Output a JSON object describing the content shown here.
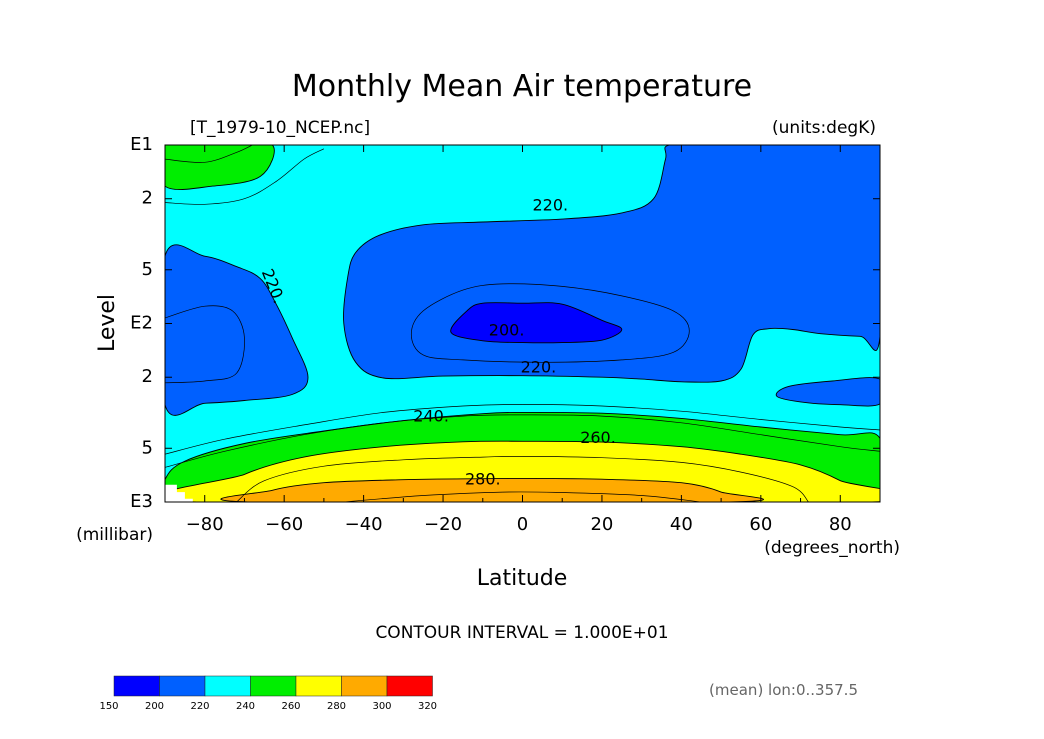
{
  "chart_data": {
    "type": "heatmap",
    "title": "Monthly Mean Air temperature",
    "subtitle_left": "[T_1979-10_NCEP.nc]",
    "subtitle_right": "(units:degK)",
    "xlabel": "Latitude",
    "xunits": "(degrees_north)",
    "ylabel": "Level",
    "yunits": "(millibar)",
    "xlim": [
      -90,
      90
    ],
    "ylim_mb": [
      1000,
      10
    ],
    "y_scale": "log",
    "x_ticks": [
      {
        "v": -80,
        "label": "−80"
      },
      {
        "v": -60,
        "label": "−60"
      },
      {
        "v": -40,
        "label": "−40"
      },
      {
        "v": -20,
        "label": "−20"
      },
      {
        "v": 0,
        "label": "0"
      },
      {
        "v": 20,
        "label": "20"
      },
      {
        "v": 40,
        "label": "40"
      },
      {
        "v": 60,
        "label": "60"
      },
      {
        "v": 80,
        "label": "80"
      }
    ],
    "y_ticks": [
      {
        "mb": 10,
        "label": "E1"
      },
      {
        "mb": 20,
        "label": "2"
      },
      {
        "mb": 50,
        "label": "5"
      },
      {
        "mb": 100,
        "label": "E2"
      },
      {
        "mb": 200,
        "label": "2"
      },
      {
        "mb": 500,
        "label": "5"
      },
      {
        "mb": 1000,
        "label": "E3"
      }
    ],
    "contour_interval_text": "CONTOUR INTERVAL = 1.000E+01",
    "note": "(mean) lon:0..357.5",
    "contour_labels": [
      {
        "text": "220.",
        "lat": 7,
        "mb": 22,
        "rot": 0
      },
      {
        "text": "220.",
        "lat": -63,
        "mb": 62,
        "rot": 68
      },
      {
        "text": "200.",
        "lat": -4,
        "mb": 110,
        "rot": 0
      },
      {
        "text": "220.",
        "lat": 4,
        "mb": 178,
        "rot": 0
      },
      {
        "text": "240.",
        "lat": -23,
        "mb": 335,
        "rot": 0
      },
      {
        "text": "260.",
        "lat": 19,
        "mb": 440,
        "rot": 0
      },
      {
        "text": "280.",
        "lat": -10,
        "mb": 755,
        "rot": 0
      }
    ],
    "colorbar": {
      "levels": [
        150,
        200,
        220,
        240,
        260,
        280,
        300,
        320
      ],
      "colors": [
        "#0000ff",
        "#0060ff",
        "#00ffff",
        "#00ee00",
        "#ffff00",
        "#ffaa00",
        "#ff0000"
      ]
    },
    "regions": [
      {
        "level": "220-240",
        "color": "#00ffff",
        "points": [
          [
            -90,
            10
          ],
          [
            90,
            10
          ],
          [
            90,
            1000
          ],
          [
            -90,
            1000
          ]
        ]
      },
      {
        "level": "200-220",
        "color": "#0060ff",
        "points": [
          [
            37,
            10
          ],
          [
            50,
            10
          ],
          [
            60,
            10
          ],
          [
            70,
            10
          ],
          [
            80,
            10
          ],
          [
            90,
            10
          ],
          [
            90,
            118
          ],
          [
            85,
            118
          ],
          [
            75,
            114
          ],
          [
            68,
            108
          ],
          [
            62,
            107
          ],
          [
            58,
            116
          ],
          [
            55,
            180
          ],
          [
            50,
            210
          ],
          [
            40,
            212
          ],
          [
            30,
            205
          ],
          [
            20,
            200
          ],
          [
            0,
            196
          ],
          [
            -20,
            197
          ],
          [
            -35,
            202
          ],
          [
            -42,
            165
          ],
          [
            -45,
            100
          ],
          [
            -44,
            55
          ],
          [
            -42,
            40
          ],
          [
            -36,
            32
          ],
          [
            -25,
            28
          ],
          [
            -10,
            27
          ],
          [
            10,
            26
          ],
          [
            25,
            24
          ],
          [
            33,
            20
          ],
          [
            36,
            12
          ]
        ]
      },
      {
        "level": "200-220",
        "color": "#0060ff",
        "points": [
          [
            -90,
            42
          ],
          [
            -80,
            42
          ],
          [
            -72,
            48
          ],
          [
            -66,
            56
          ],
          [
            -62,
            78
          ],
          [
            -58,
            120
          ],
          [
            -54,
            200
          ],
          [
            -58,
            250
          ],
          [
            -70,
            270
          ],
          [
            -80,
            280
          ],
          [
            -90,
            285
          ]
        ]
      },
      {
        "level": "200-220",
        "color": "#0060ff",
        "points": [
          [
            90,
            205
          ],
          [
            78,
            210
          ],
          [
            67,
            225
          ],
          [
            64,
            255
          ],
          [
            70,
            275
          ],
          [
            80,
            285
          ],
          [
            90,
            282
          ]
        ]
      },
      {
        "level": "< 200",
        "color": "#0000ff",
        "points": [
          [
            -18,
            112
          ],
          [
            -14,
            85
          ],
          [
            -10,
            77
          ],
          [
            0,
            77
          ],
          [
            10,
            78
          ],
          [
            20,
            96
          ],
          [
            25,
            108
          ],
          [
            20,
            124
          ],
          [
            10,
            128
          ],
          [
            0,
            128
          ],
          [
            -10,
            125
          ]
        ]
      },
      {
        "level": "240-260",
        "color": "#00ee00",
        "points": [
          [
            -90,
            10
          ],
          [
            -75,
            10
          ],
          [
            -63,
            10
          ],
          [
            -66,
            15
          ],
          [
            -78,
            17
          ],
          [
            -90,
            17
          ]
        ]
      },
      {
        "level": "240-260",
        "color": "#00ee00",
        "points": [
          [
            -90,
            1000
          ],
          [
            -90,
            750
          ],
          [
            -85,
            590
          ],
          [
            -70,
            470
          ],
          [
            -50,
            400
          ],
          [
            -30,
            350
          ],
          [
            -10,
            320
          ],
          [
            0,
            315
          ],
          [
            20,
            318
          ],
          [
            40,
            340
          ],
          [
            60,
            380
          ],
          [
            80,
            420
          ],
          [
            90,
            440
          ],
          [
            90,
            1000
          ]
        ]
      },
      {
        "level": "260-280",
        "color": "#ffff00",
        "points": [
          [
            -82,
            1000
          ],
          [
            -70,
            700
          ],
          [
            -55,
            560
          ],
          [
            -35,
            490
          ],
          [
            -15,
            460
          ],
          [
            0,
            457
          ],
          [
            20,
            462
          ],
          [
            40,
            490
          ],
          [
            55,
            540
          ],
          [
            70,
            620
          ],
          [
            80,
            760
          ],
          [
            88,
            1000
          ]
        ]
      },
      {
        "level": "280-300",
        "color": "#ffaa00",
        "points": [
          [
            -68,
            1000
          ],
          [
            -63,
            860
          ],
          [
            -50,
            780
          ],
          [
            -30,
            750
          ],
          [
            -10,
            740
          ],
          [
            0,
            738
          ],
          [
            20,
            745
          ],
          [
            40,
            780
          ],
          [
            50,
            880
          ],
          [
            52,
            1000
          ]
        ]
      },
      {
        "level": "missing",
        "color": "#ffffff",
        "points": [
          [
            -90,
            1000
          ],
          [
            -90,
            800
          ],
          [
            -87,
            800
          ],
          [
            -87,
            880
          ],
          [
            -85,
            880
          ],
          [
            -85,
            960
          ],
          [
            -83,
            960
          ],
          [
            -83,
            1000
          ]
        ]
      }
    ],
    "lines": [
      [
        [
          -90,
          21
        ],
        [
          -80,
          21.5
        ],
        [
          -70,
          20
        ],
        [
          -62,
          16
        ],
        [
          -55,
          12
        ],
        [
          -50,
          10.5
        ]
      ],
      [
        [
          -90,
          12
        ],
        [
          -80,
          12.5
        ],
        [
          -72,
          11
        ],
        [
          -68,
          10
        ]
      ],
      [
        [
          -90,
          93
        ],
        [
          -80,
          80
        ],
        [
          -73,
          85
        ],
        [
          -70,
          120
        ],
        [
          -72,
          190
        ],
        [
          -80,
          210
        ],
        [
          -90,
          215
        ]
      ],
      [
        [
          -28,
          115
        ],
        [
          -25,
          85
        ],
        [
          -15,
          65
        ],
        [
          -5,
          60
        ],
        [
          10,
          62
        ],
        [
          25,
          70
        ],
        [
          38,
          85
        ],
        [
          42,
          110
        ],
        [
          38,
          145
        ],
        [
          25,
          160
        ],
        [
          5,
          165
        ],
        [
          -15,
          160
        ],
        [
          -25,
          150
        ],
        [
          -28,
          115
        ]
      ],
      [
        [
          -90,
          640
        ],
        [
          -75,
          520
        ],
        [
          -55,
          420
        ],
        [
          -35,
          360
        ],
        [
          -15,
          330
        ],
        [
          0,
          325
        ],
        [
          20,
          330
        ],
        [
          40,
          360
        ],
        [
          60,
          420
        ],
        [
          80,
          490
        ],
        [
          90,
          520
        ]
      ],
      [
        [
          -90,
          540
        ],
        [
          -75,
          445
        ],
        [
          -55,
          370
        ],
        [
          -35,
          315
        ],
        [
          -15,
          290
        ],
        [
          0,
          284
        ],
        [
          20,
          290
        ],
        [
          40,
          310
        ],
        [
          60,
          345
        ],
        [
          80,
          380
        ],
        [
          90,
          395
        ]
      ],
      [
        [
          -72,
          1000
        ],
        [
          -65,
          760
        ],
        [
          -50,
          630
        ],
        [
          -30,
          580
        ],
        [
          -10,
          560
        ],
        [
          0,
          555
        ],
        [
          20,
          565
        ],
        [
          40,
          600
        ],
        [
          55,
          680
        ],
        [
          68,
          820
        ],
        [
          72,
          1000
        ]
      ],
      [
        [
          -45,
          1000
        ],
        [
          -25,
          920
        ],
        [
          -5,
          880
        ],
        [
          10,
          885
        ],
        [
          30,
          920
        ],
        [
          45,
          1000
        ]
      ]
    ]
  }
}
